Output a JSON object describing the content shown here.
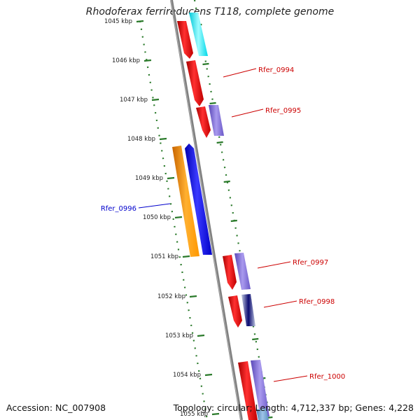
{
  "title": "Rhodoferax ferrireducens T118, complete genome",
  "footer": {
    "accession": "Accession: NC_007908",
    "summary": "Topology: circular; Length: 4,712,337 bp; Genes: 4,228"
  },
  "colors": {
    "backbone": "#808080",
    "ticks": "#2a7a2a",
    "label_forward": "#cc0000",
    "label_reverse": "#0000cc"
  },
  "ticks": [
    "1045 kbp",
    "1046 kbp",
    "1047 kbp",
    "1048 kbp",
    "1049 kbp",
    "1050 kbp",
    "1051 kbp",
    "1052 kbp",
    "1053 kbp",
    "1054 kbp",
    "1055 kbp"
  ],
  "genes": [
    {
      "label": "Rfer_0994",
      "color": "#cc0000"
    },
    {
      "label": "Rfer_0995",
      "color": "#cc0000"
    },
    {
      "label": "Rfer_0996",
      "color": "#0000cc"
    },
    {
      "label": "Rfer_0997",
      "color": "#cc0000"
    },
    {
      "label": "Rfer_0998",
      "color": "#cc0000"
    },
    {
      "label": "Rfer_1000",
      "color": "#cc0000"
    }
  ]
}
